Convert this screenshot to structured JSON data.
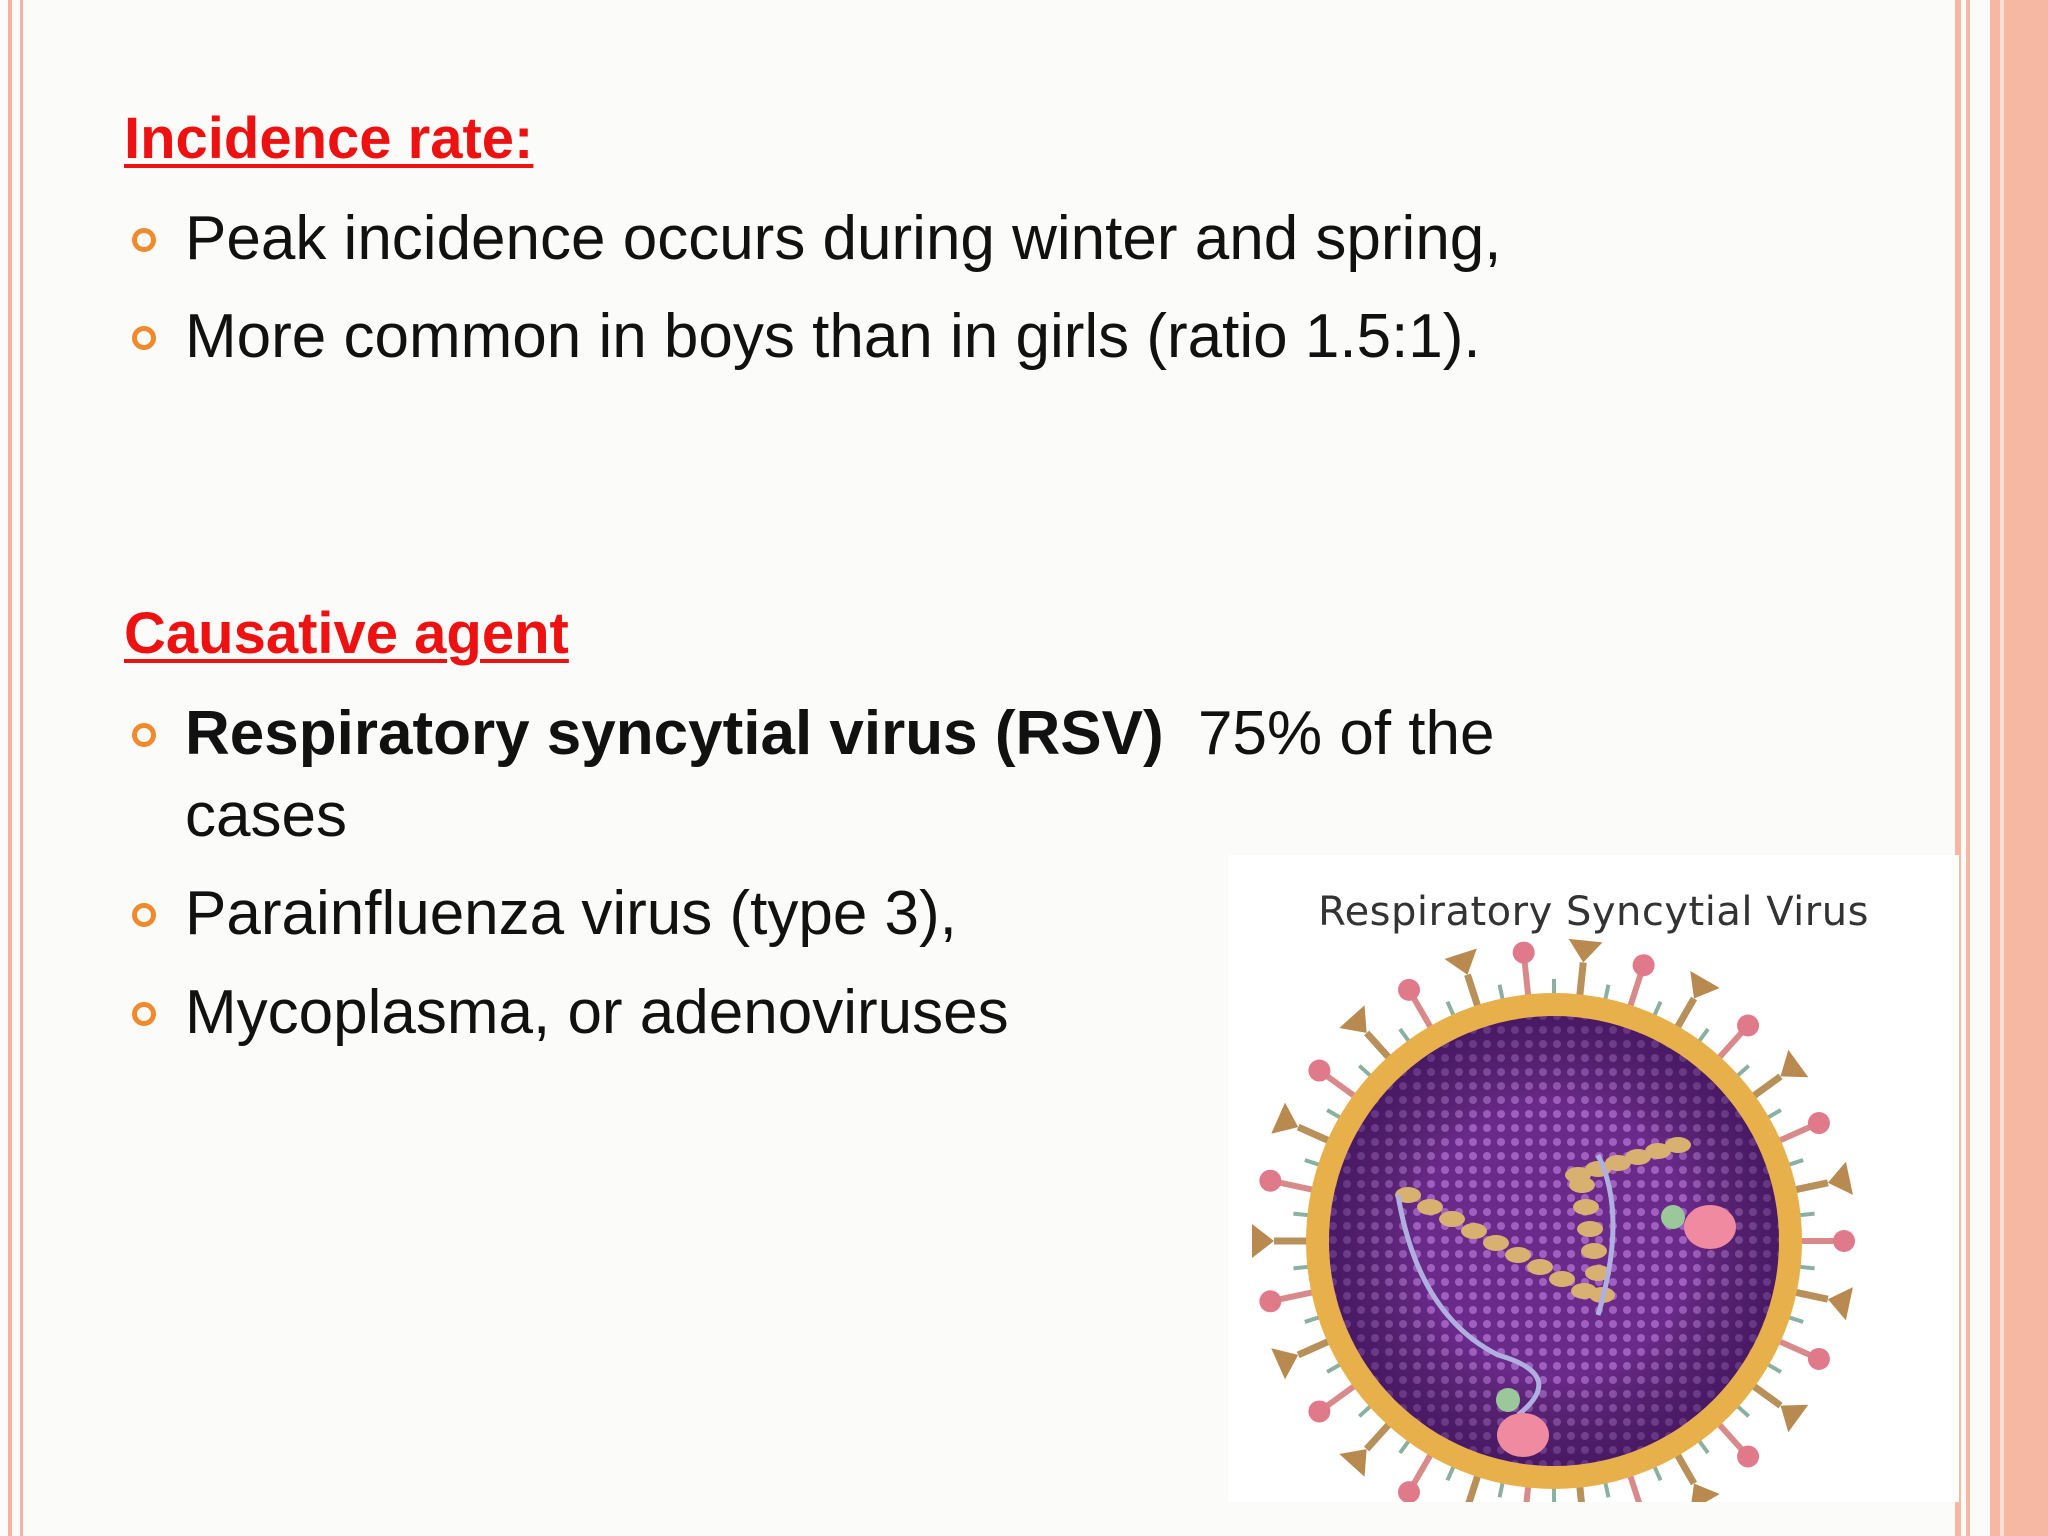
{
  "sections": [
    {
      "heading": "Incidence rate:",
      "bullets": [
        {
          "parts": [
            {
              "text": "Peak incidence occurs during winter and spring,"
            }
          ]
        },
        {
          "parts": [
            {
              "text": "More common in boys than in girls (ratio 1.5:1)."
            }
          ]
        }
      ]
    },
    {
      "heading": "Causative agent",
      "bullets": [
        {
          "parts": [
            {
              "text": "Respiratory syncytial virus (RSV)",
              "bold": true
            },
            {
              "text": "75% of the cases"
            }
          ]
        },
        {
          "parts": [
            {
              "text": "Parainfluenza virus (type 3),"
            }
          ]
        },
        {
          "parts": [
            {
              "text": "Mycoplasma, or adenoviruses"
            }
          ]
        }
      ]
    }
  ],
  "figure": {
    "caption": "Respiratory Syncytial Virus"
  }
}
